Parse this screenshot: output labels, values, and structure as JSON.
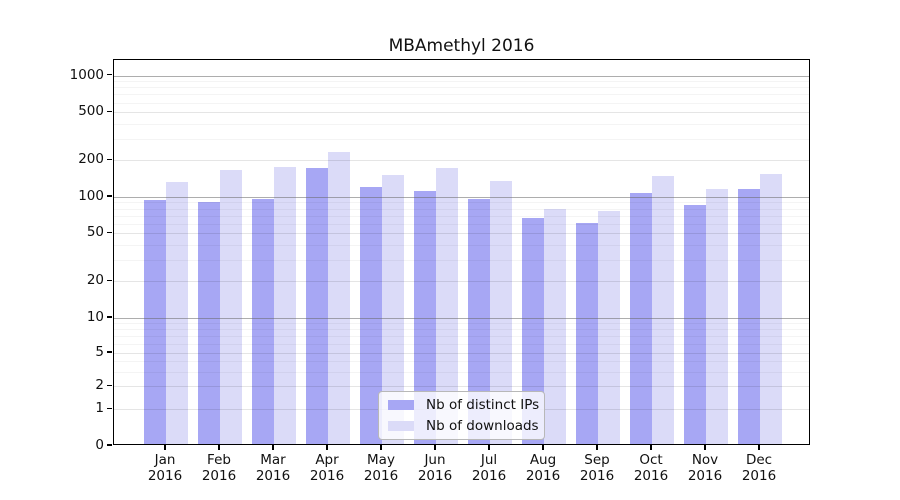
{
  "chart_data": {
    "type": "bar",
    "title": "MBAmethyl 2016",
    "categories": [
      "Jan 2016",
      "Feb 2016",
      "Mar 2016",
      "Apr 2016",
      "May 2016",
      "Jun 2016",
      "Jul 2016",
      "Aug 2016",
      "Sep 2016",
      "Oct 2016",
      "Nov 2016",
      "Dec 2016"
    ],
    "series": [
      {
        "name": "Nb of distinct IPs",
        "color": "#a7a7f4",
        "values": [
          91,
          87,
          92,
          165,
          115,
          108,
          93,
          65,
          59,
          104,
          83,
          112
        ]
      },
      {
        "name": "Nb of downloads",
        "color": "#dbdbf8",
        "values": [
          128,
          159,
          170,
          225,
          146,
          167,
          129,
          76,
          74,
          143,
          111,
          148
        ]
      }
    ],
    "yticks": [
      0,
      1,
      2,
      5,
      10,
      20,
      50,
      100,
      200,
      500,
      1000
    ],
    "xlabel": "",
    "ylabel": "",
    "scale": "symlog",
    "grid": true,
    "legend_position": "lower-center-inside",
    "background_color": "#ffffff",
    "major_gridline_values": [
      10,
      100,
      1000
    ]
  }
}
